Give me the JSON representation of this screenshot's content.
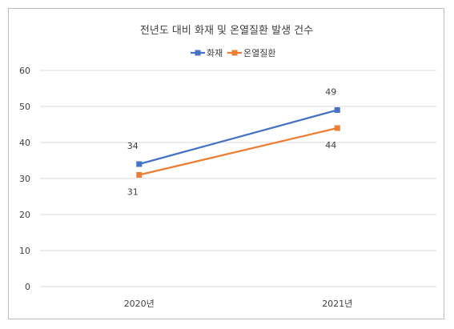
{
  "chart_data": {
    "type": "line",
    "title": "전년도 대비 화재 및 온열질환 발생 건수",
    "categories": [
      "2020년",
      "2021년"
    ],
    "series": [
      {
        "name": "화재",
        "values": [
          34,
          49
        ],
        "color": "#4472C4",
        "label_position": "above"
      },
      {
        "name": "온열질환",
        "values": [
          31,
          44
        ],
        "color": "#ED7D31",
        "label_position": "below"
      }
    ],
    "ylim": [
      0,
      60
    ],
    "yticks": [
      0,
      10,
      20,
      30,
      40,
      50,
      60
    ],
    "grid": true,
    "legend_position": "top",
    "marker": "square"
  }
}
